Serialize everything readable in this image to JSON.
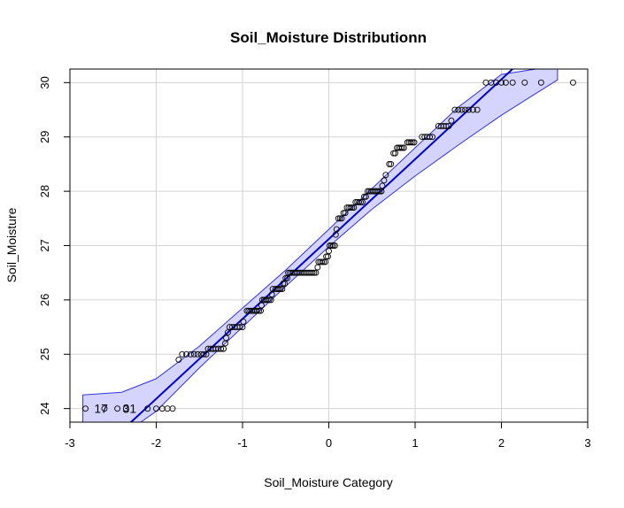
{
  "chart_data": {
    "type": "scatter",
    "title": "Soil_Moisture Distributionn",
    "xlabel": "Soil_Moisture Category",
    "ylabel": "Soil_Moisture",
    "xlim": [
      -3,
      3
    ],
    "ylim": [
      23.75,
      30.25
    ],
    "x_ticks": [
      -3,
      -2,
      -1,
      0,
      1,
      2,
      3
    ],
    "y_ticks": [
      24,
      25,
      26,
      27,
      28,
      29,
      30
    ],
    "grid": true,
    "colors": {
      "line": "#0000cc",
      "band_fill": "#d4d4ff",
      "band_stroke": "#3333dd",
      "points": "#000000",
      "grid": "#d3d3d3"
    },
    "reference_line": {
      "intercept": 27.12,
      "slope": 1.47
    },
    "confidence_band": {
      "x": [
        -2.85,
        -2.4,
        -2.0,
        -1.5,
        -1.0,
        -0.5,
        0.0,
        0.5,
        1.0,
        1.5,
        2.0,
        2.4,
        2.65
      ],
      "lower": [
        23.1,
        23.5,
        23.95,
        24.75,
        25.5,
        26.25,
        26.98,
        27.67,
        28.28,
        28.85,
        29.4,
        29.8,
        30.05
      ],
      "upper": [
        24.25,
        24.3,
        24.55,
        25.15,
        25.85,
        26.55,
        27.3,
        28.05,
        28.8,
        29.55,
        30.15,
        30.25,
        30.28
      ]
    },
    "point_labels": [
      {
        "text": "17",
        "x": -2.66,
        "y": 24.0
      },
      {
        "text": "31",
        "x": -2.33,
        "y": 24.0
      }
    ],
    "points_runs": [
      {
        "y": 24.0,
        "x": [
          -2.82,
          -2.6,
          -2.45,
          -2.35,
          -2.1,
          -2.0,
          -1.93,
          -1.87,
          -1.81
        ]
      },
      {
        "y": 24.9,
        "x": [
          -1.74
        ]
      },
      {
        "y": 25.0,
        "x": [
          -1.7,
          -1.65,
          -1.6,
          -1.56,
          -1.52,
          -1.48,
          -1.45,
          -1.42
        ]
      },
      {
        "y": 25.1,
        "x": [
          -1.4,
          -1.37,
          -1.34,
          -1.31,
          -1.28,
          -1.25,
          -1.22
        ]
      },
      {
        "y": 25.2,
        "x": [
          -1.2
        ]
      },
      {
        "y": 25.3,
        "x": [
          -1.19
        ]
      },
      {
        "y": 25.4,
        "x": [
          -1.17
        ]
      },
      {
        "y": 25.5,
        "x": [
          -1.15,
          -1.12,
          -1.09,
          -1.06,
          -1.03,
          -1.0
        ]
      },
      {
        "y": 25.6,
        "x": [
          -0.99
        ]
      },
      {
        "y": 25.8,
        "x": [
          -0.95,
          -0.93,
          -0.91,
          -0.89,
          -0.87,
          -0.85,
          -0.83,
          -0.81,
          -0.79
        ]
      },
      {
        "y": 25.9,
        "x": [
          -0.78
        ]
      },
      {
        "y": 26.0,
        "x": [
          -0.77,
          -0.75,
          -0.73,
          -0.71,
          -0.69,
          -0.67
        ]
      },
      {
        "y": 26.1,
        "x": [
          -0.66
        ]
      },
      {
        "y": 26.2,
        "x": [
          -0.65,
          -0.62,
          -0.6,
          -0.58,
          -0.56,
          -0.54
        ]
      },
      {
        "y": 26.3,
        "x": [
          -0.53,
          -0.51
        ]
      },
      {
        "y": 26.4,
        "x": [
          -0.5,
          -0.48
        ]
      },
      {
        "y": 26.5,
        "x": [
          -0.47,
          -0.45,
          -0.43,
          -0.41,
          -0.39,
          -0.37,
          -0.35,
          -0.33,
          -0.31,
          -0.29,
          -0.27,
          -0.25,
          -0.23,
          -0.21,
          -0.19,
          -0.17,
          -0.15
        ]
      },
      {
        "y": 26.6,
        "x": [
          -0.13
        ]
      },
      {
        "y": 26.7,
        "x": [
          -0.12,
          -0.1,
          -0.08,
          -0.06,
          -0.04
        ]
      },
      {
        "y": 26.8,
        "x": [
          -0.03,
          -0.01
        ]
      },
      {
        "y": 26.9,
        "x": [
          0.0
        ]
      },
      {
        "y": 27.0,
        "x": [
          0.01,
          0.03,
          0.05,
          0.07
        ]
      },
      {
        "y": 27.2,
        "x": [
          0.08
        ]
      },
      {
        "y": 27.3,
        "x": [
          0.09
        ]
      },
      {
        "y": 27.5,
        "x": [
          0.11,
          0.13,
          0.15
        ]
      },
      {
        "y": 27.6,
        "x": [
          0.17,
          0.19
        ]
      },
      {
        "y": 27.7,
        "x": [
          0.21,
          0.23,
          0.25,
          0.27,
          0.29
        ]
      },
      {
        "y": 27.8,
        "x": [
          0.31,
          0.33,
          0.35,
          0.37,
          0.39
        ]
      },
      {
        "y": 27.9,
        "x": [
          0.41,
          0.43
        ]
      },
      {
        "y": 28.0,
        "x": [
          0.45,
          0.47,
          0.49,
          0.51,
          0.53,
          0.55,
          0.57,
          0.59,
          0.61
        ]
      },
      {
        "y": 28.1,
        "x": [
          0.62
        ]
      },
      {
        "y": 28.2,
        "x": [
          0.64
        ]
      },
      {
        "y": 28.3,
        "x": [
          0.66
        ]
      },
      {
        "y": 28.5,
        "x": [
          0.7,
          0.72
        ]
      },
      {
        "y": 28.7,
        "x": [
          0.75,
          0.77
        ]
      },
      {
        "y": 28.8,
        "x": [
          0.79,
          0.81,
          0.83,
          0.85,
          0.87
        ]
      },
      {
        "y": 28.9,
        "x": [
          0.91,
          0.93,
          0.95,
          0.97,
          0.99
        ]
      },
      {
        "y": 29.0,
        "x": [
          1.08,
          1.11,
          1.14,
          1.17,
          1.2
        ]
      },
      {
        "y": 29.2,
        "x": [
          1.27,
          1.3,
          1.33,
          1.36,
          1.39
        ]
      },
      {
        "y": 29.3,
        "x": [
          1.42
        ]
      },
      {
        "y": 29.5,
        "x": [
          1.46,
          1.5,
          1.54,
          1.58,
          1.62,
          1.67,
          1.72
        ]
      },
      {
        "y": 30.0,
        "x": [
          1.82,
          1.88,
          1.94,
          2.0,
          2.05,
          2.13,
          2.27,
          2.46,
          2.83
        ]
      }
    ]
  }
}
